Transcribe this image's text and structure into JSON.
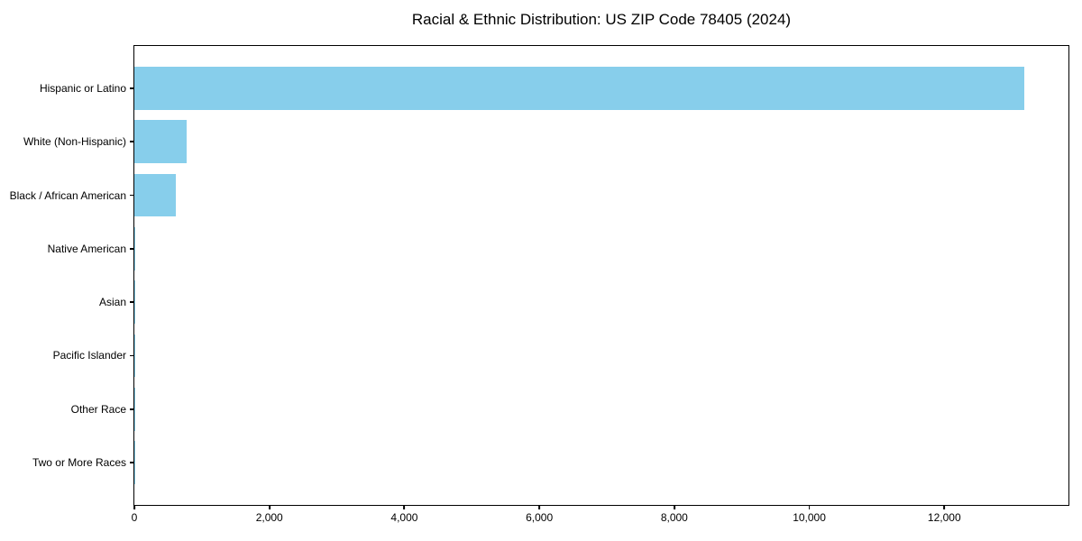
{
  "page": {
    "background_color": "#ffffff",
    "text_color": "#000000",
    "axis_color": "#000000"
  },
  "chart_data": {
    "type": "bar",
    "orientation": "horizontal",
    "title": "Racial & Ethnic Distribution: US ZIP Code 78405 (2024)",
    "categories": [
      "Hispanic or Latino",
      "White (Non-Hispanic)",
      "Black / African American",
      "Native American",
      "Asian",
      "Pacific Islander",
      "Other Race",
      "Two or More Races"
    ],
    "values": [
      13180,
      770,
      610,
      20,
      10,
      2,
      6,
      12
    ],
    "bar_color": "#87CEEB",
    "xlabel": "",
    "ylabel": "",
    "xlim": [
      0,
      13840
    ],
    "x_ticks": [
      0,
      2000,
      4000,
      6000,
      8000,
      10000,
      12000
    ],
    "x_tick_labels": [
      "0",
      "2,000",
      "4,000",
      "6,000",
      "8,000",
      "10,000",
      "12,000"
    ],
    "grid": false,
    "legend": "none",
    "plot_background": "#ffffff"
  }
}
